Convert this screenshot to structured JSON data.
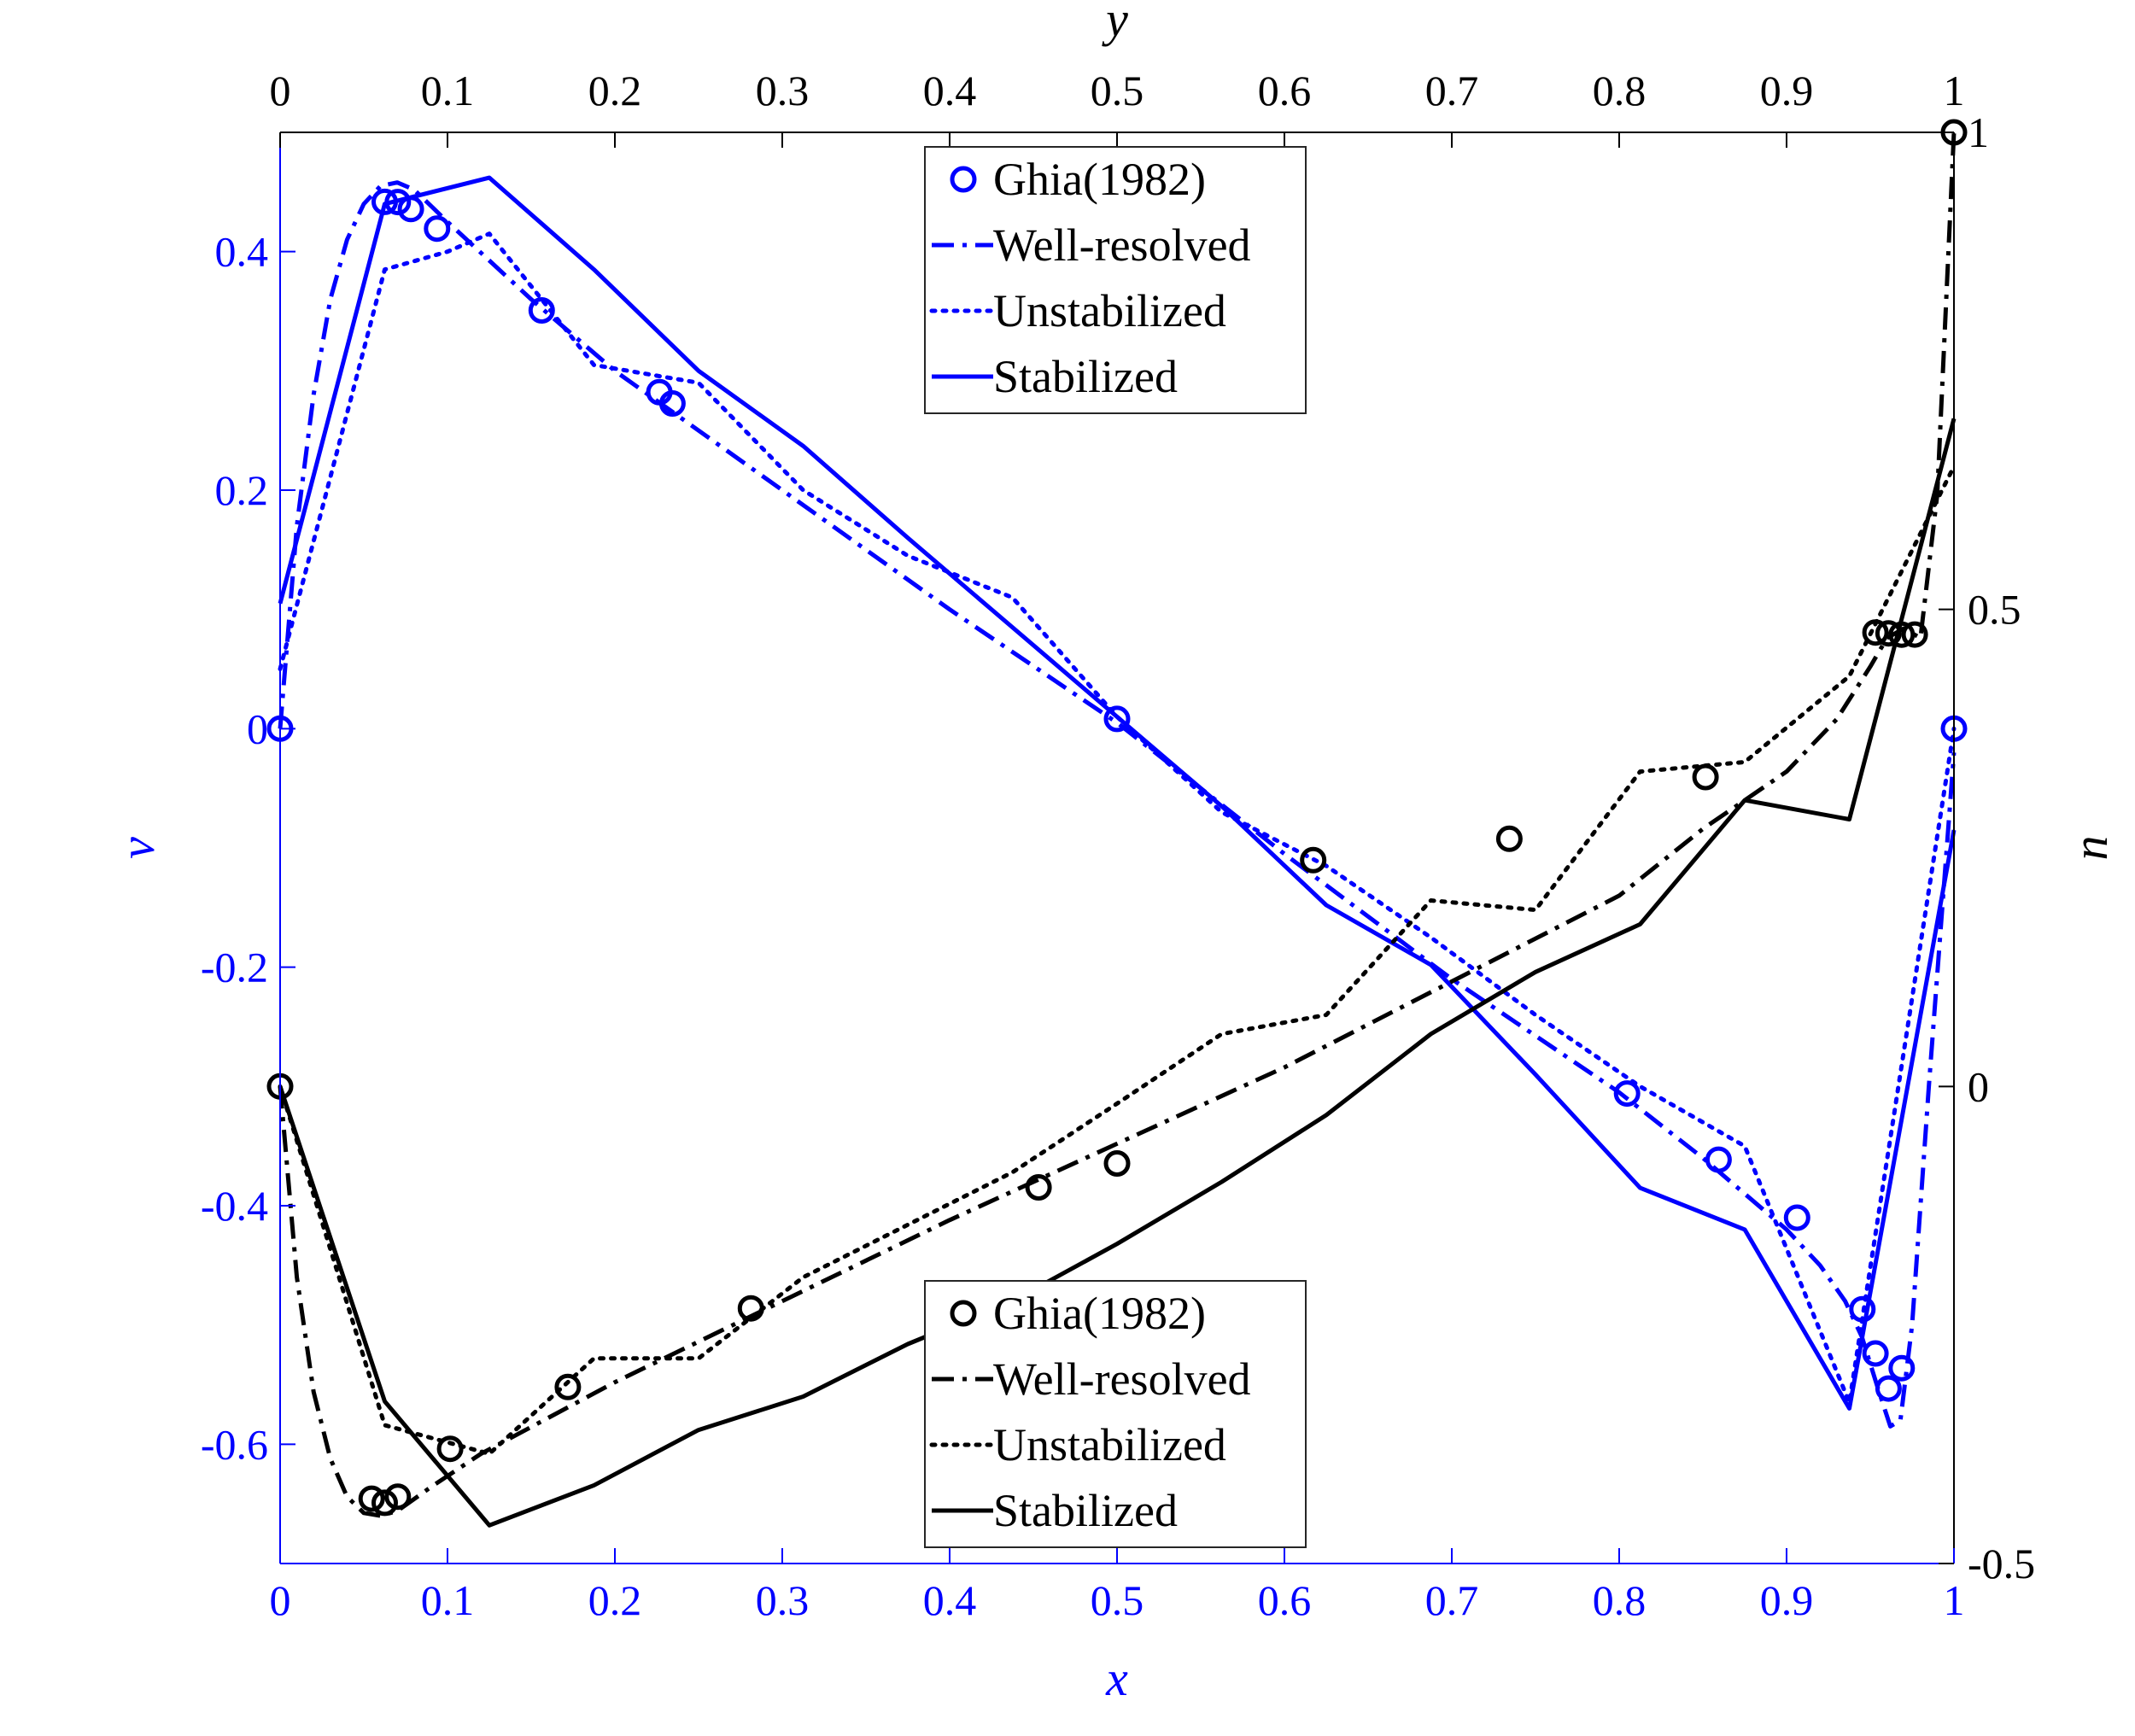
{
  "chart_data": {
    "type": "line",
    "colors": {
      "blue": "#0000ff",
      "black": "#000000"
    },
    "axes": {
      "bottom": {
        "label": "x",
        "lim": [
          0,
          1
        ],
        "ticks": [
          "0",
          "0.1",
          "0.2",
          "0.3",
          "0.4",
          "0.5",
          "0.6",
          "0.7",
          "0.8",
          "0.9",
          "1"
        ],
        "color": "#0000ff"
      },
      "top": {
        "label": "y",
        "lim": [
          0,
          1
        ],
        "ticks": [
          "0",
          "0.1",
          "0.2",
          "0.3",
          "0.4",
          "0.5",
          "0.6",
          "0.7",
          "0.8",
          "0.9",
          "1"
        ],
        "color": "#000000"
      },
      "left": {
        "label": "v",
        "lim": [
          -0.7,
          0.5
        ],
        "ticks": [
          "0.4",
          "0.2",
          "0",
          "-0.2",
          "-0.4",
          "-0.6"
        ],
        "tick_values": [
          0.4,
          0.2,
          0,
          -0.2,
          -0.4,
          -0.6
        ],
        "color": "#0000ff"
      },
      "right": {
        "label": "u",
        "lim": [
          -0.5,
          1
        ],
        "ticks": [
          "1",
          "0.5",
          "0",
          "-0.5"
        ],
        "tick_values": [
          1,
          0.5,
          0,
          -0.5
        ],
        "color": "#000000"
      }
    },
    "legends": [
      {
        "group": "v",
        "position": "top-center",
        "entries": [
          "Ghia(1982)",
          "Well-resolved",
          "Unstabilized",
          "Stabilized"
        ]
      },
      {
        "group": "u",
        "position": "bottom-center",
        "entries": [
          "Ghia(1982)",
          "Well-resolved",
          "Unstabilized",
          "Stabilized"
        ]
      }
    ],
    "series": [
      {
        "group": "v",
        "style": "markers",
        "x": [
          0,
          0.0625,
          0.0703,
          0.0781,
          0.0938,
          0.1563,
          0.2266,
          0.2344,
          0.5,
          0.8047,
          0.8594,
          0.9063,
          0.9453,
          0.9531,
          0.9609,
          0.9688,
          1
        ],
        "y": [
          0,
          0.4417,
          0.4416,
          0.4357,
          0.4193,
          0.3507,
          0.2822,
          0.2727,
          0.0082,
          -0.3059,
          -0.3614,
          -0.41,
          -0.4868,
          -0.5239,
          -0.5533,
          -0.5362,
          0
        ]
      },
      {
        "group": "v",
        "style": "dashdot",
        "x": [
          0,
          0.01,
          0.02,
          0.03,
          0.04,
          0.05,
          0.06,
          0.07,
          0.08,
          0.1,
          0.15,
          0.2,
          0.3,
          0.4,
          0.5,
          0.6,
          0.7,
          0.8,
          0.85,
          0.9,
          0.92,
          0.935,
          0.945,
          0.955,
          0.962,
          0.968,
          0.975,
          0.985,
          1
        ],
        "y": [
          0,
          0.17,
          0.28,
          0.36,
          0.41,
          0.44,
          0.455,
          0.458,
          0.452,
          0.425,
          0.36,
          0.3,
          0.2,
          0.1,
          0.005,
          -0.105,
          -0.21,
          -0.305,
          -0.36,
          -0.42,
          -0.45,
          -0.48,
          -0.51,
          -0.555,
          -0.585,
          -0.58,
          -0.5,
          -0.3,
          -0.02
        ]
      },
      {
        "group": "v",
        "style": "dotted",
        "x": [
          0,
          0.0625,
          0.1,
          0.125,
          0.1875,
          0.25,
          0.3125,
          0.375,
          0.4375,
          0.5,
          0.5625,
          0.625,
          0.6875,
          0.75,
          0.8125,
          0.875,
          0.9375,
          1
        ],
        "y": [
          0.05,
          0.385,
          0.4,
          0.415,
          0.305,
          0.29,
          0.2,
          0.145,
          0.11,
          0.01,
          -0.07,
          -0.115,
          -0.175,
          -0.24,
          -0.3,
          -0.35,
          -0.565,
          0
        ]
      },
      {
        "group": "v",
        "style": "solid",
        "x": [
          0,
          0.0625,
          0.125,
          0.1875,
          0.25,
          0.3125,
          0.375,
          0.4375,
          0.5,
          0.5625,
          0.625,
          0.6875,
          0.75,
          0.8125,
          0.875,
          0.9375,
          1
        ],
        "y": [
          0.105,
          0.44,
          0.462,
          0.385,
          0.3,
          0.237,
          0.16,
          0.085,
          0.01,
          -0.065,
          -0.148,
          -0.198,
          -0.29,
          -0.385,
          -0.42,
          -0.57,
          -0.085
        ]
      },
      {
        "group": "u",
        "style": "markers",
        "x": [
          0,
          0.0547,
          0.0625,
          0.0703,
          0.1016,
          0.1719,
          0.2813,
          0.4531,
          0.5,
          0.6172,
          0.7344,
          0.8516,
          0.9531,
          0.9609,
          0.9688,
          0.9766,
          1
        ],
        "y": [
          0,
          -0.4321,
          -0.4364,
          -0.4299,
          -0.3798,
          -0.315,
          -0.2326,
          -0.1058,
          -0.0807,
          0.2372,
          0.2596,
          0.3243,
          0.4758,
          0.4749,
          0.4736,
          0.4737,
          1
        ]
      },
      {
        "group": "u",
        "style": "dashdot",
        "x": [
          0,
          0.01,
          0.02,
          0.03,
          0.04,
          0.05,
          0.06,
          0.07,
          0.09,
          0.12,
          0.2,
          0.3,
          0.4,
          0.5,
          0.6,
          0.7,
          0.8,
          0.85,
          0.9,
          0.93,
          0.95,
          0.96,
          0.97,
          0.98,
          0.99,
          1
        ],
        "y": [
          0,
          -0.2,
          -0.32,
          -0.39,
          -0.43,
          -0.447,
          -0.45,
          -0.445,
          -0.42,
          -0.385,
          -0.31,
          -0.225,
          -0.14,
          -0.06,
          0.02,
          0.11,
          0.2,
          0.27,
          0.33,
          0.385,
          0.44,
          0.47,
          0.48,
          0.47,
          0.62,
          1
        ]
      },
      {
        "group": "u",
        "style": "dotted",
        "x": [
          0,
          0.0625,
          0.125,
          0.1875,
          0.25,
          0.3125,
          0.375,
          0.4375,
          0.5,
          0.5625,
          0.625,
          0.6875,
          0.75,
          0.8125,
          0.875,
          0.9375,
          1
        ],
        "y": [
          0,
          -0.355,
          -0.385,
          -0.285,
          -0.285,
          -0.2,
          -0.145,
          -0.09,
          -0.018,
          0.055,
          0.075,
          0.195,
          0.185,
          0.33,
          0.34,
          0.43,
          0.65
        ]
      },
      {
        "group": "u",
        "style": "solid",
        "x": [
          0,
          0.0625,
          0.125,
          0.1875,
          0.25,
          0.3125,
          0.375,
          0.4375,
          0.5,
          0.5625,
          0.625,
          0.6875,
          0.75,
          0.8125,
          0.875,
          0.9375,
          1
        ],
        "y": [
          0,
          -0.33,
          -0.46,
          -0.418,
          -0.36,
          -0.325,
          -0.27,
          -0.225,
          -0.165,
          -0.1,
          -0.03,
          0.055,
          0.12,
          0.17,
          0.3,
          0.28,
          0.7
        ]
      }
    ]
  }
}
